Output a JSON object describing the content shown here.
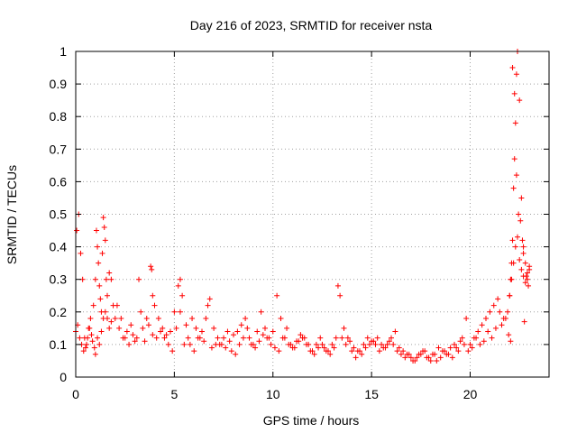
{
  "chart_data": {
    "type": "scatter",
    "title": "Day 216 of 2023, SRMTID for receiver nsta",
    "xlabel": "GPS time / hours",
    "ylabel": "SRMTID / TECUs",
    "xlim": [
      0,
      24
    ],
    "ylim": [
      0,
      1
    ],
    "grid": true,
    "marker": "plus",
    "color": "#ff0000",
    "xticks": [
      0,
      5,
      10,
      15,
      20
    ],
    "xtick_labels": [
      "0",
      "5",
      "10",
      "15",
      "20"
    ],
    "yticks": [
      0,
      0.1,
      0.2,
      0.3,
      0.4,
      0.5,
      0.6,
      0.7,
      0.8,
      0.9,
      1
    ],
    "ytick_labels": [
      "0",
      "0.1",
      "0.2",
      "0.3",
      "0.4",
      "0.5",
      "0.6",
      "0.7",
      "0.8",
      "0.9",
      "1"
    ],
    "series": [
      {
        "name": "SRMTID",
        "x": [
          0.0,
          0.1,
          0.2,
          0.3,
          0.4,
          0.5,
          0.6,
          0.7,
          0.8,
          0.9,
          1.0,
          1.05,
          1.1,
          1.15,
          1.2,
          1.25,
          1.3,
          1.35,
          1.4,
          1.45,
          1.5,
          1.55,
          1.6,
          1.7,
          1.8,
          1.9,
          2.0,
          2.2,
          2.4,
          2.6,
          2.8,
          3.0,
          3.2,
          3.3,
          3.4,
          3.6,
          3.8,
          3.85,
          3.9,
          4.0,
          4.2,
          4.4,
          4.6,
          4.8,
          5.0,
          5.2,
          5.3,
          5.4,
          5.6,
          5.8,
          6.0,
          6.2,
          6.4,
          6.6,
          6.7,
          6.8,
          7.0,
          7.2,
          7.4,
          7.6,
          7.8,
          8.0,
          8.2,
          8.4,
          8.6,
          8.8,
          9.0,
          9.2,
          9.4,
          9.6,
          9.8,
          10.0,
          10.2,
          10.4,
          10.6,
          10.8,
          11.0,
          11.2,
          11.4,
          11.6,
          11.8,
          12.0,
          12.2,
          12.4,
          12.6,
          12.8,
          13.0,
          13.2,
          13.3,
          13.4,
          13.6,
          13.8,
          14.0,
          14.2,
          14.4,
          14.6,
          14.8,
          15.0,
          15.2,
          15.4,
          15.6,
          15.8,
          16.0,
          16.2,
          16.4,
          16.6,
          16.8,
          17.0,
          17.2,
          17.4,
          17.6,
          17.8,
          18.0,
          18.2,
          18.4,
          18.6,
          18.8,
          19.0,
          19.2,
          19.4,
          19.6,
          19.8,
          20.0,
          20.2,
          20.4,
          20.6,
          20.8,
          21.0,
          21.2,
          21.4,
          21.6,
          21.8,
          21.9,
          22.0,
          22.05,
          22.1,
          22.15,
          22.2,
          22.25,
          22.3,
          22.35,
          22.4,
          22.5,
          22.6,
          22.7,
          22.8,
          22.9,
          23.0,
          0.05,
          0.15,
          0.25,
          0.35,
          0.45,
          0.55,
          0.65,
          0.75,
          0.85,
          0.95,
          1.0,
          1.1,
          1.2,
          1.3,
          1.4,
          1.5,
          1.6,
          1.7,
          1.8,
          2.1,
          2.3,
          2.5,
          2.7,
          2.9,
          3.1,
          3.5,
          3.7,
          3.9,
          4.1,
          4.3,
          4.5,
          4.7,
          4.9,
          5.1,
          5.3,
          5.5,
          5.7,
          5.9,
          6.1,
          6.3,
          6.5,
          6.9,
          7.1,
          7.3,
          7.5,
          7.7,
          7.9,
          8.1,
          8.3,
          8.5,
          8.7,
          8.9,
          9.1,
          9.3,
          9.5,
          9.7,
          9.9,
          10.1,
          10.3,
          10.5,
          10.7,
          10.9,
          11.1,
          11.3,
          11.5,
          11.7,
          11.9,
          12.1,
          12.3,
          12.5,
          12.7,
          12.9,
          13.1,
          13.5,
          13.7,
          13.9,
          14.1,
          14.3,
          14.5,
          14.7,
          14.9,
          15.1,
          15.3,
          15.5,
          15.7,
          15.9,
          16.1,
          16.3,
          16.5,
          16.7,
          16.9,
          17.1,
          17.3,
          17.5,
          17.7,
          17.9,
          18.1,
          18.3,
          18.5,
          18.7,
          18.9,
          19.1,
          19.3,
          19.5,
          19.7,
          19.9,
          20.1,
          20.3,
          20.5,
          20.7,
          20.9,
          21.1,
          21.3,
          21.5,
          21.7,
          22.0,
          22.1,
          22.2,
          22.3,
          22.4,
          22.5,
          22.6,
          22.7,
          22.8,
          22.9,
          23.0,
          22.15,
          22.25,
          22.35,
          22.45,
          22.55,
          22.65,
          22.7,
          22.75,
          22.85,
          22.95,
          21.95,
          22.05
        ],
        "y": [
          0.14,
          0.16,
          0.12,
          0.1,
          0.08,
          0.09,
          0.12,
          0.15,
          0.13,
          0.22,
          0.3,
          0.45,
          0.4,
          0.35,
          0.28,
          0.24,
          0.2,
          0.38,
          0.49,
          0.46,
          0.42,
          0.3,
          0.18,
          0.15,
          0.17,
          0.22,
          0.18,
          0.15,
          0.12,
          0.14,
          0.16,
          0.11,
          0.3,
          0.2,
          0.15,
          0.18,
          0.34,
          0.33,
          0.25,
          0.22,
          0.18,
          0.15,
          0.13,
          0.14,
          0.2,
          0.28,
          0.3,
          0.25,
          0.16,
          0.1,
          0.08,
          0.12,
          0.14,
          0.18,
          0.22,
          0.24,
          0.15,
          0.12,
          0.1,
          0.09,
          0.11,
          0.13,
          0.14,
          0.16,
          0.18,
          0.12,
          0.1,
          0.14,
          0.2,
          0.15,
          0.12,
          0.14,
          0.25,
          0.18,
          0.12,
          0.1,
          0.09,
          0.11,
          0.13,
          0.12,
          0.1,
          0.08,
          0.1,
          0.12,
          0.09,
          0.08,
          0.1,
          0.12,
          0.28,
          0.25,
          0.15,
          0.12,
          0.08,
          0.06,
          0.08,
          0.1,
          0.12,
          0.11,
          0.1,
          0.08,
          0.09,
          0.1,
          0.12,
          0.14,
          0.09,
          0.08,
          0.07,
          0.06,
          0.05,
          0.07,
          0.08,
          0.06,
          0.05,
          0.07,
          0.09,
          0.08,
          0.07,
          0.09,
          0.1,
          0.08,
          0.12,
          0.18,
          0.1,
          0.12,
          0.14,
          0.16,
          0.18,
          0.2,
          0.22,
          0.24,
          0.16,
          0.18,
          0.2,
          0.25,
          0.3,
          0.35,
          0.42,
          0.58,
          0.67,
          0.78,
          0.93,
          1.0,
          0.85,
          0.55,
          0.4,
          0.35,
          0.3,
          0.33,
          0.45,
          0.5,
          0.38,
          0.3,
          0.12,
          0.1,
          0.15,
          0.18,
          0.11,
          0.09,
          0.07,
          0.12,
          0.1,
          0.14,
          0.18,
          0.2,
          0.25,
          0.32,
          0.3,
          0.22,
          0.18,
          0.12,
          0.1,
          0.13,
          0.12,
          0.11,
          0.16,
          0.13,
          0.12,
          0.14,
          0.12,
          0.1,
          0.08,
          0.15,
          0.2,
          0.1,
          0.12,
          0.18,
          0.15,
          0.12,
          0.11,
          0.09,
          0.1,
          0.1,
          0.12,
          0.14,
          0.08,
          0.07,
          0.1,
          0.12,
          0.15,
          0.1,
          0.09,
          0.11,
          0.13,
          0.12,
          0.1,
          0.09,
          0.08,
          0.12,
          0.15,
          0.1,
          0.09,
          0.11,
          0.12,
          0.1,
          0.08,
          0.07,
          0.09,
          0.1,
          0.08,
          0.07,
          0.09,
          0.12,
          0.1,
          0.11,
          0.09,
          0.08,
          0.07,
          0.09,
          0.1,
          0.11,
          0.12,
          0.1,
          0.09,
          0.11,
          0.1,
          0.08,
          0.07,
          0.06,
          0.07,
          0.05,
          0.06,
          0.07,
          0.08,
          0.06,
          0.07,
          0.05,
          0.06,
          0.08,
          0.07,
          0.06,
          0.09,
          0.11,
          0.1,
          0.08,
          0.09,
          0.12,
          0.1,
          0.11,
          0.14,
          0.12,
          0.15,
          0.2,
          0.18,
          0.25,
          0.3,
          0.35,
          0.4,
          0.43,
          0.36,
          0.33,
          0.31,
          0.29,
          0.32,
          0.34,
          0.95,
          0.87,
          0.62,
          0.5,
          0.48,
          0.42,
          0.38,
          0.17,
          0.31,
          0.28,
          0.13,
          0.11
        ]
      }
    ]
  }
}
